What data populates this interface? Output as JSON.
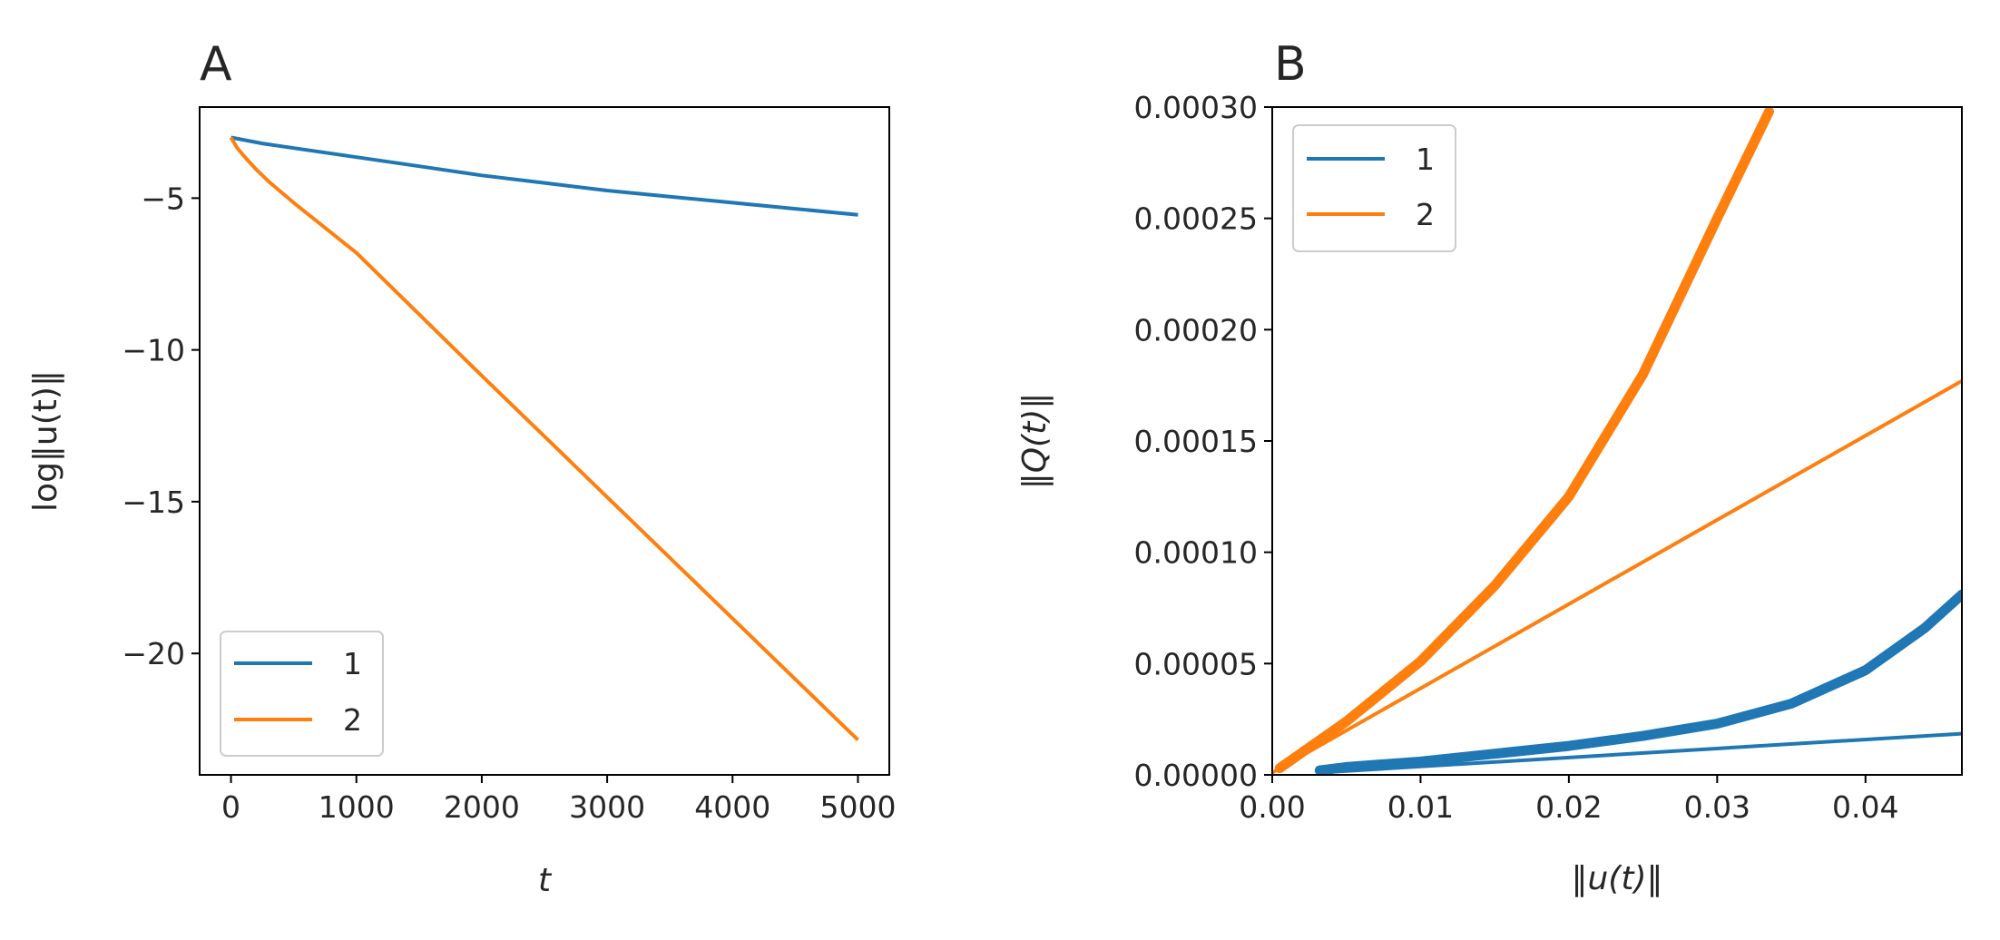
{
  "colors": {
    "series1": "#1f77b4",
    "series2": "#ff7f0e"
  },
  "chart_data": [
    {
      "panel": "A",
      "type": "line",
      "xlabel": "t",
      "ylabel": "log‖u(t)‖",
      "xlim": [
        -250,
        5250
      ],
      "ylim": [
        -24,
        -2
      ],
      "xticks": [
        0,
        1000,
        2000,
        3000,
        4000,
        5000
      ],
      "xtick_labels": [
        "0",
        "1000",
        "2000",
        "3000",
        "4000",
        "5000"
      ],
      "yticks": [
        -5,
        -10,
        -15,
        -20
      ],
      "ytick_labels": [
        "−5",
        "−10",
        "−15",
        "−20"
      ],
      "legend": {
        "location": "lower-left",
        "entries": [
          "1",
          "2"
        ]
      },
      "series": [
        {
          "name": "1",
          "x": [
            0,
            250,
            500,
            1000,
            1500,
            2000,
            2500,
            3000,
            3500,
            4000,
            4500,
            5000
          ],
          "y": [
            -3.0,
            -3.2,
            -3.35,
            -3.65,
            -3.95,
            -4.25,
            -4.5,
            -4.75,
            -4.95,
            -5.15,
            -5.35,
            -5.55
          ]
        },
        {
          "name": "2",
          "x": [
            0,
            50,
            100,
            200,
            300,
            500,
            1000,
            2000,
            3000,
            4000,
            5000
          ],
          "y": [
            -3.0,
            -3.35,
            -3.6,
            -4.05,
            -4.45,
            -5.15,
            -6.8,
            -10.85,
            -14.85,
            -18.85,
            -22.85
          ]
        }
      ]
    },
    {
      "panel": "B",
      "type": "line",
      "xlabel": "‖u(t)‖",
      "ylabel": "‖Q(t)‖",
      "xlim": [
        0,
        0.0465
      ],
      "ylim": [
        0,
        0.0003
      ],
      "xticks": [
        0.0,
        0.01,
        0.02,
        0.03,
        0.04
      ],
      "xtick_labels": [
        "0.00",
        "0.01",
        "0.02",
        "0.03",
        "0.04"
      ],
      "yticks": [
        0.0,
        5e-05,
        0.0001,
        0.00015,
        0.0002,
        0.00025,
        0.0003
      ],
      "ytick_labels": [
        "0.00000",
        "0.00005",
        "0.00010",
        "0.00015",
        "0.00020",
        "0.00025",
        "0.00030"
      ],
      "legend": {
        "location": "upper-left",
        "entries": [
          "1",
          "2"
        ]
      },
      "series": [
        {
          "name": "1",
          "style": "thick",
          "x": [
            0.0032,
            0.005,
            0.01,
            0.015,
            0.02,
            0.025,
            0.03,
            0.035,
            0.04,
            0.044,
            0.0465
          ],
          "y": [
            2e-06,
            3.5e-06,
            6e-06,
            9.5e-06,
            1.3e-05,
            1.75e-05,
            2.3e-05,
            3.2e-05,
            4.7e-05,
            6.6e-05,
            8.1e-05
          ]
        },
        {
          "name": "1",
          "style": "thin",
          "x": [
            0.0032,
            0.0465
          ],
          "y": [
            1e-06,
            1.85e-05
          ]
        },
        {
          "name": "2",
          "style": "thick",
          "x": [
            0.0005,
            0.005,
            0.01,
            0.015,
            0.02,
            0.025,
            0.03,
            0.0335
          ],
          "y": [
            3e-06,
            2.4e-05,
            5.1e-05,
            8.5e-05,
            0.000125,
            0.00018,
            0.00025,
            0.000298
          ]
        },
        {
          "name": "2",
          "style": "thin",
          "x": [
            0.0,
            0.0465
          ],
          "y": [
            1e-06,
            0.000177
          ]
        }
      ]
    }
  ]
}
